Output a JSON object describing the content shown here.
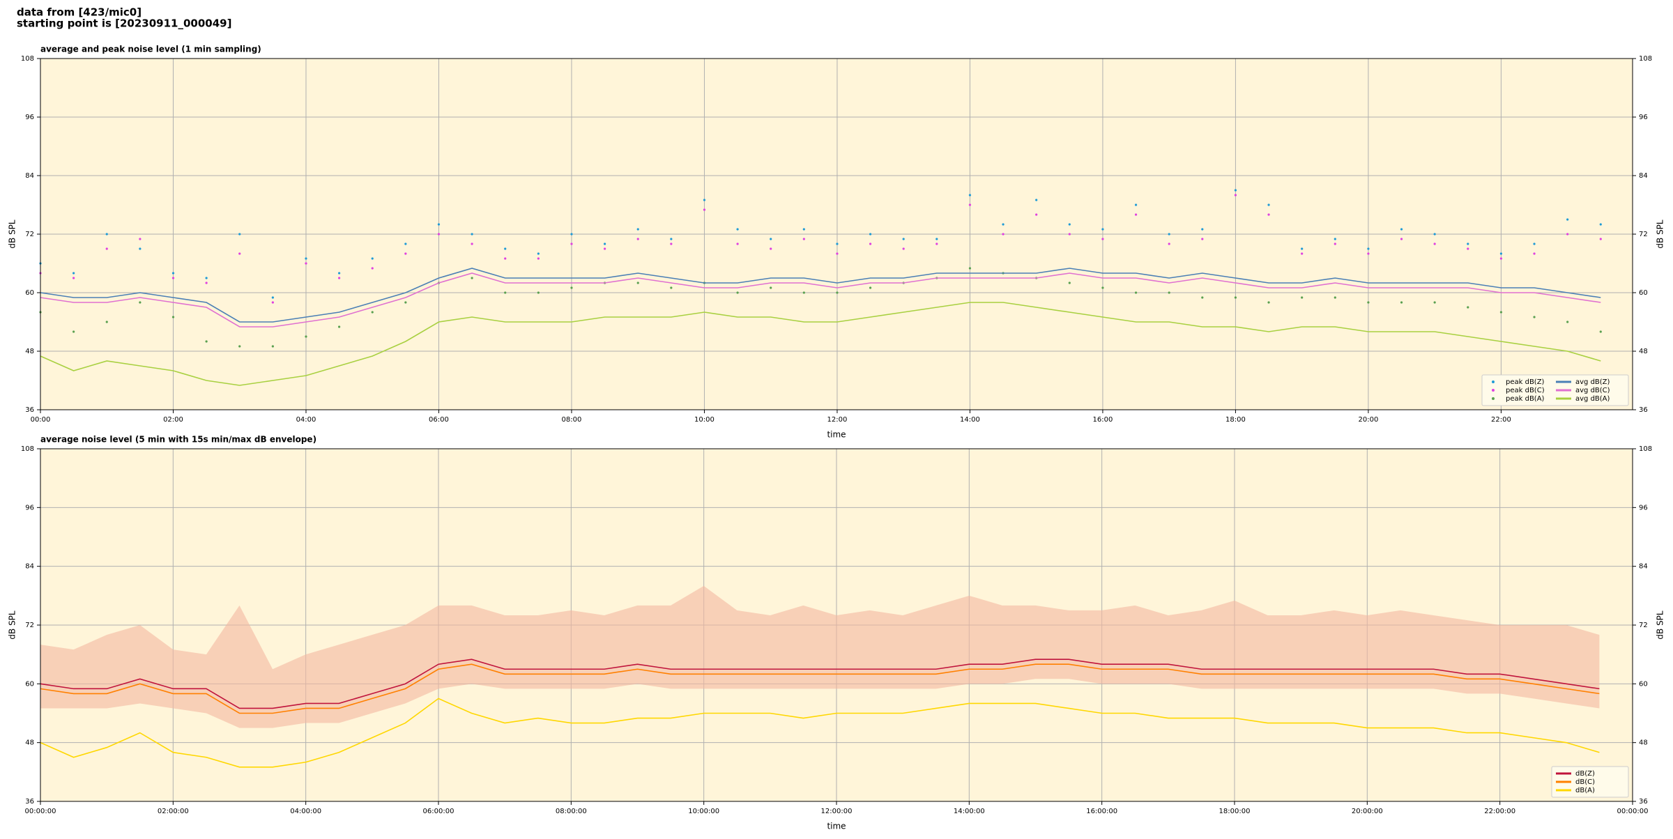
{
  "header": {
    "line1": "data from [423/mic0]",
    "line2": "starting point is [20230911_000049]"
  },
  "chart_data": [
    {
      "type": "line",
      "title": "average and peak noise level (1 min sampling)",
      "xlabel": "time",
      "ylabel": "dB SPL",
      "xlim": [
        0,
        23.98
      ],
      "xticks": [
        {
          "value": 0,
          "label": "00:00"
        },
        {
          "value": 2,
          "label": "02:00"
        },
        {
          "value": 4,
          "label": "04:00"
        },
        {
          "value": 6,
          "label": "06:00"
        },
        {
          "value": 8,
          "label": "08:00"
        },
        {
          "value": 10,
          "label": "10:00"
        },
        {
          "value": 12,
          "label": "12:00"
        },
        {
          "value": 14,
          "label": "14:00"
        },
        {
          "value": 16,
          "label": "16:00"
        },
        {
          "value": 18,
          "label": "18:00"
        },
        {
          "value": 20,
          "label": "20:00"
        },
        {
          "value": 22,
          "label": "22:00"
        }
      ],
      "ylim": [
        36,
        108
      ],
      "yticks": [
        36,
        48,
        60,
        72,
        84,
        96,
        108
      ],
      "grid": true,
      "legend": "lower right",
      "legend_columns": 2,
      "x": [
        0,
        0.5,
        1,
        1.5,
        2,
        2.5,
        3,
        3.5,
        4,
        4.5,
        5,
        5.5,
        6,
        6.5,
        7,
        7.5,
        8,
        8.5,
        9,
        9.5,
        10,
        10.5,
        11,
        11.5,
        12,
        12.5,
        13,
        13.5,
        14,
        14.5,
        15,
        15.5,
        16,
        16.5,
        17,
        17.5,
        18,
        18.5,
        19,
        19.5,
        20,
        20.5,
        21,
        21.5,
        22,
        22.5,
        23,
        23.5
      ],
      "series": [
        {
          "name": "peak dB(Z)",
          "style": "dots",
          "color": "#1f9bd6",
          "values": [
            66,
            64,
            72,
            69,
            64,
            63,
            72,
            59,
            67,
            64,
            67,
            70,
            74,
            72,
            69,
            68,
            72,
            70,
            73,
            71,
            79,
            73,
            71,
            73,
            70,
            72,
            71,
            71,
            80,
            74,
            79,
            74,
            73,
            78,
            72,
            73,
            81,
            78,
            69,
            71,
            69,
            73,
            72,
            70,
            68,
            70,
            75,
            74
          ]
        },
        {
          "name": "peak dB(C)",
          "style": "dots",
          "color": "#e040e0",
          "values": [
            64,
            63,
            69,
            71,
            63,
            62,
            68,
            58,
            66,
            63,
            65,
            68,
            72,
            70,
            67,
            67,
            70,
            69,
            71,
            70,
            77,
            70,
            69,
            71,
            68,
            70,
            69,
            70,
            78,
            72,
            76,
            72,
            71,
            76,
            70,
            71,
            80,
            76,
            68,
            70,
            68,
            71,
            70,
            69,
            67,
            68,
            72,
            71
          ]
        },
        {
          "name": "peak dB(A)",
          "style": "dots",
          "color": "#5aa050",
          "values": [
            56,
            52,
            54,
            58,
            55,
            50,
            49,
            49,
            51,
            53,
            56,
            58,
            62,
            63,
            60,
            60,
            61,
            62,
            62,
            61,
            62,
            60,
            61,
            60,
            60,
            61,
            62,
            63,
            65,
            64,
            63,
            62,
            61,
            60,
            60,
            59,
            59,
            58,
            59,
            59,
            58,
            58,
            58,
            57,
            56,
            55,
            54,
            52
          ]
        },
        {
          "name": "avg dB(Z)",
          "style": "line",
          "color": "#4a7fb5",
          "values": [
            60,
            59,
            59,
            60,
            59,
            58,
            54,
            54,
            55,
            56,
            58,
            60,
            63,
            65,
            63,
            63,
            63,
            63,
            64,
            63,
            62,
            62,
            63,
            63,
            62,
            63,
            63,
            64,
            64,
            64,
            64,
            65,
            64,
            64,
            63,
            64,
            63,
            62,
            62,
            63,
            62,
            62,
            62,
            62,
            61,
            61,
            60,
            59
          ]
        },
        {
          "name": "avg dB(C)",
          "style": "line",
          "color": "#e070d0",
          "values": [
            59,
            58,
            58,
            59,
            58,
            57,
            53,
            53,
            54,
            55,
            57,
            59,
            62,
            64,
            62,
            62,
            62,
            62,
            63,
            62,
            61,
            61,
            62,
            62,
            61,
            62,
            62,
            63,
            63,
            63,
            63,
            64,
            63,
            63,
            62,
            63,
            62,
            61,
            61,
            62,
            61,
            61,
            61,
            61,
            60,
            60,
            59,
            58
          ]
        },
        {
          "name": "avg dB(A)",
          "style": "line",
          "color": "#a8d040",
          "values": [
            47,
            44,
            46,
            45,
            44,
            42,
            41,
            42,
            43,
            45,
            47,
            50,
            54,
            55,
            54,
            54,
            54,
            55,
            55,
            55,
            56,
            55,
            55,
            54,
            54,
            55,
            56,
            57,
            58,
            58,
            57,
            56,
            55,
            54,
            54,
            53,
            53,
            52,
            53,
            53,
            52,
            52,
            52,
            51,
            50,
            49,
            48,
            46
          ]
        }
      ]
    },
    {
      "type": "line",
      "title": "average noise level (5 min with 15s min/max dB envelope)",
      "xlabel": "time",
      "ylabel": "dB SPL",
      "xlim": [
        0,
        24
      ],
      "xticks": [
        {
          "value": 0,
          "label": "00:00:00"
        },
        {
          "value": 2,
          "label": "02:00:00"
        },
        {
          "value": 4,
          "label": "04:00:00"
        },
        {
          "value": 6,
          "label": "06:00:00"
        },
        {
          "value": 8,
          "label": "08:00:00"
        },
        {
          "value": 10,
          "label": "10:00:00"
        },
        {
          "value": 12,
          "label": "12:00:00"
        },
        {
          "value": 14,
          "label": "14:00:00"
        },
        {
          "value": 16,
          "label": "16:00:00"
        },
        {
          "value": 18,
          "label": "18:00:00"
        },
        {
          "value": 20,
          "label": "20:00:00"
        },
        {
          "value": 22,
          "label": "22:00:00"
        },
        {
          "value": 24,
          "label": "00:00:00"
        }
      ],
      "ylim": [
        36,
        108
      ],
      "yticks": [
        36,
        48,
        60,
        72,
        84,
        96,
        108
      ],
      "grid": true,
      "legend": "lower right",
      "legend_columns": 1,
      "x": [
        0,
        0.5,
        1,
        1.5,
        2,
        2.5,
        3,
        3.5,
        4,
        4.5,
        5,
        5.5,
        6,
        6.5,
        7,
        7.5,
        8,
        8.5,
        9,
        9.5,
        10,
        10.5,
        11,
        11.5,
        12,
        12.5,
        13,
        13.5,
        14,
        14.5,
        15,
        15.5,
        16,
        16.5,
        17,
        17.5,
        18,
        18.5,
        19,
        19.5,
        20,
        20.5,
        21,
        21.5,
        22,
        22.5,
        23,
        23.5
      ],
      "envelope": {
        "color": "#f4b8a0",
        "lower": [
          55,
          55,
          55,
          56,
          55,
          54,
          51,
          51,
          52,
          52,
          54,
          56,
          59,
          60,
          59,
          59,
          59,
          59,
          60,
          59,
          59,
          59,
          59,
          59,
          59,
          59,
          59,
          59,
          60,
          60,
          61,
          61,
          60,
          60,
          60,
          59,
          59,
          59,
          59,
          59,
          59,
          59,
          59,
          58,
          58,
          57,
          56,
          55
        ],
        "upper": [
          68,
          67,
          70,
          72,
          67,
          66,
          76,
          63,
          66,
          68,
          70,
          72,
          76,
          76,
          74,
          74,
          75,
          74,
          76,
          76,
          80,
          75,
          74,
          76,
          74,
          75,
          74,
          76,
          78,
          76,
          76,
          75,
          75,
          76,
          74,
          75,
          77,
          74,
          74,
          75,
          74,
          75,
          74,
          73,
          72,
          72,
          72,
          70
        ]
      },
      "series": [
        {
          "name": "dB(Z)",
          "style": "line",
          "color": "#c0143c",
          "values": [
            60,
            59,
            59,
            61,
            59,
            59,
            55,
            55,
            56,
            56,
            58,
            60,
            64,
            65,
            63,
            63,
            63,
            63,
            64,
            63,
            63,
            63,
            63,
            63,
            63,
            63,
            63,
            63,
            64,
            64,
            65,
            65,
            64,
            64,
            64,
            63,
            63,
            63,
            63,
            63,
            63,
            63,
            63,
            62,
            62,
            61,
            60,
            59
          ]
        },
        {
          "name": "dB(C)",
          "style": "line",
          "color": "#ff8000",
          "values": [
            59,
            58,
            58,
            60,
            58,
            58,
            54,
            54,
            55,
            55,
            57,
            59,
            63,
            64,
            62,
            62,
            62,
            62,
            63,
            62,
            62,
            62,
            62,
            62,
            62,
            62,
            62,
            62,
            63,
            63,
            64,
            64,
            63,
            63,
            63,
            62,
            62,
            62,
            62,
            62,
            62,
            62,
            62,
            61,
            61,
            60,
            59,
            58
          ]
        },
        {
          "name": "dB(A)",
          "style": "line",
          "color": "#ffd700",
          "values": [
            48,
            45,
            47,
            50,
            46,
            45,
            43,
            43,
            44,
            46,
            49,
            52,
            57,
            54,
            52,
            53,
            52,
            52,
            53,
            53,
            54,
            54,
            54,
            53,
            54,
            54,
            54,
            55,
            56,
            56,
            56,
            55,
            54,
            54,
            53,
            53,
            53,
            52,
            52,
            52,
            51,
            51,
            51,
            50,
            50,
            49,
            48,
            46
          ]
        }
      ]
    }
  ]
}
